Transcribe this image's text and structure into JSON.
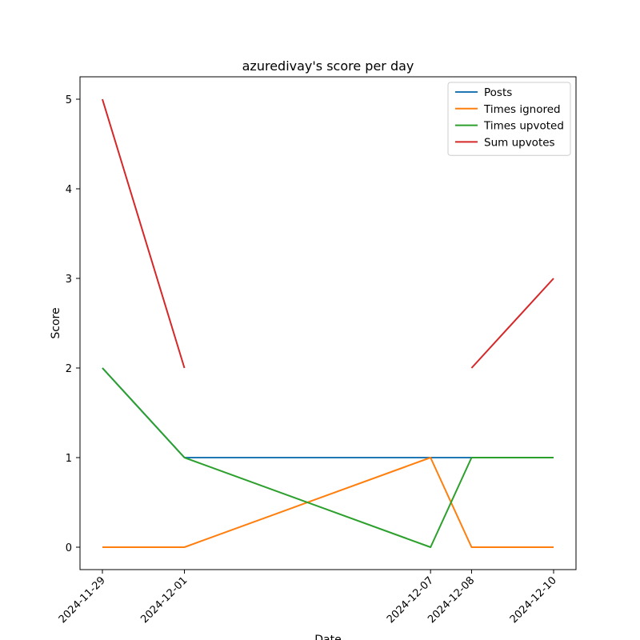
{
  "chart_data": {
    "type": "line",
    "title": "azuredivay's score per day",
    "xlabel": "Date",
    "ylabel": "Score",
    "x": [
      "2024-11-29",
      "2024-12-01",
      "2024-12-07",
      "2024-12-08",
      "2024-12-10"
    ],
    "ylim": [
      -0.25,
      5.25
    ],
    "yticks": [
      0,
      1,
      2,
      3,
      4,
      5
    ],
    "legend_position": "top-right",
    "grid": false,
    "series": [
      {
        "name": "Posts",
        "color": "#1f77b4",
        "values": [
          2,
          1,
          1,
          1,
          1
        ]
      },
      {
        "name": "Times ignored",
        "color": "#ff7f0e",
        "values": [
          0,
          0,
          1,
          0,
          0
        ]
      },
      {
        "name": "Times upvoted",
        "color": "#2ca02c",
        "values": [
          2,
          1,
          0,
          1,
          1
        ]
      },
      {
        "name": "Sum upvotes",
        "color": "#d62728",
        "values": [
          5,
          2,
          null,
          2,
          3
        ]
      }
    ]
  }
}
